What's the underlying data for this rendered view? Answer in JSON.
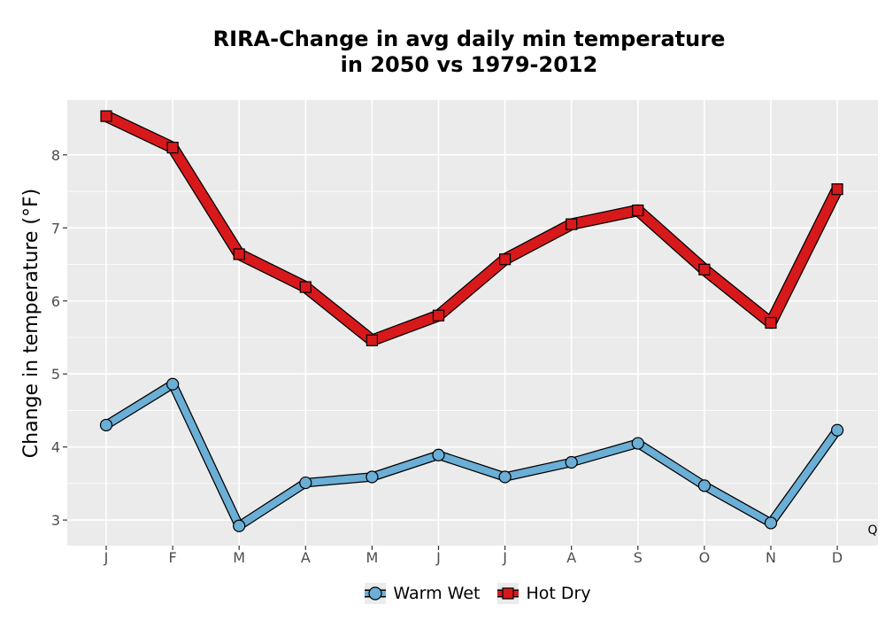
{
  "chart_data": {
    "type": "line",
    "title_lines": [
      "RIRA-Change in avg daily min temperature",
      "in 2050 vs 1979-2012"
    ],
    "xlabel": "",
    "ylabel": "Change in temperature (°F)",
    "categories": [
      "J",
      "F",
      "M",
      "A",
      "M",
      "J",
      "J",
      "A",
      "S",
      "O",
      "N",
      "D"
    ],
    "ylim": [
      2.65,
      8.75
    ],
    "yticks": [
      3,
      4,
      5,
      6,
      7,
      8
    ],
    "grid": true,
    "legend_position": "bottom",
    "corner_label": "Q",
    "series": [
      {
        "name": "Warm Wet",
        "marker": "circle",
        "color": "#6baed6",
        "values": [
          4.3,
          4.86,
          2.92,
          3.51,
          3.59,
          3.89,
          3.59,
          3.79,
          4.05,
          3.47,
          2.96,
          4.23
        ]
      },
      {
        "name": "Hot Dry",
        "marker": "square",
        "color": "#d7191c",
        "values": [
          8.53,
          8.1,
          6.64,
          6.19,
          5.46,
          5.8,
          6.57,
          7.05,
          7.24,
          6.43,
          5.7,
          7.53
        ]
      }
    ]
  }
}
